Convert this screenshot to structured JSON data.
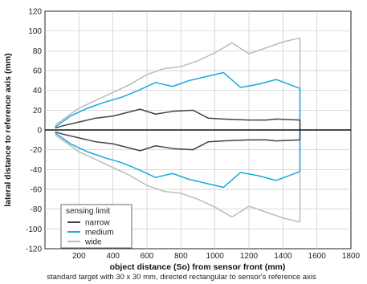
{
  "chart_data": {
    "type": "line",
    "xlabel": "object distance (So) from sensor front (mm)",
    "ylabel": "lateral distance to reference axis (mm)",
    "caption": "standard target with 30 x 30 mm, directed rectangular to sensor's reference axis",
    "xlim": [
      0,
      1800
    ],
    "ylim": [
      -120,
      120
    ],
    "x_ticks": [
      200,
      400,
      600,
      800,
      1000,
      1200,
      1400,
      1600,
      1800
    ],
    "y_ticks": [
      -120,
      -100,
      -80,
      -60,
      -40,
      -20,
      0,
      20,
      40,
      60,
      80,
      100,
      120
    ],
    "grid": true,
    "legend": {
      "title": "sensing limit",
      "placement": "bottom-left"
    },
    "series": [
      {
        "name": "narrow",
        "color": "#444444",
        "upper": [
          [
            60,
            2
          ],
          [
            100,
            4
          ],
          [
            200,
            8
          ],
          [
            300,
            12
          ],
          [
            400,
            14
          ],
          [
            560,
            21
          ],
          [
            650,
            16
          ],
          [
            760,
            19
          ],
          [
            870,
            20
          ],
          [
            960,
            12
          ],
          [
            1050,
            11
          ],
          [
            1200,
            10
          ],
          [
            1300,
            10
          ],
          [
            1360,
            11
          ],
          [
            1500,
            10
          ]
        ],
        "lower": [
          [
            60,
            -2
          ],
          [
            100,
            -4
          ],
          [
            200,
            -8
          ],
          [
            300,
            -12
          ],
          [
            400,
            -14
          ],
          [
            560,
            -21
          ],
          [
            650,
            -16
          ],
          [
            760,
            -19
          ],
          [
            870,
            -20
          ],
          [
            960,
            -12
          ],
          [
            1050,
            -11
          ],
          [
            1200,
            -10
          ],
          [
            1300,
            -10
          ],
          [
            1360,
            -11
          ],
          [
            1500,
            -10
          ]
        ],
        "closed_at_x": 1500
      },
      {
        "name": "medium",
        "color": "#19a8e0",
        "upper": [
          [
            60,
            3
          ],
          [
            150,
            14
          ],
          [
            250,
            22
          ],
          [
            350,
            28
          ],
          [
            450,
            33
          ],
          [
            550,
            40
          ],
          [
            650,
            48
          ],
          [
            750,
            44
          ],
          [
            850,
            50
          ],
          [
            950,
            54
          ],
          [
            1050,
            58
          ],
          [
            1150,
            43
          ],
          [
            1250,
            46
          ],
          [
            1360,
            51
          ],
          [
            1500,
            42
          ]
        ],
        "lower": [
          [
            60,
            -3
          ],
          [
            150,
            -14
          ],
          [
            250,
            -22
          ],
          [
            350,
            -28
          ],
          [
            450,
            -33
          ],
          [
            550,
            -40
          ],
          [
            650,
            -48
          ],
          [
            750,
            -44
          ],
          [
            850,
            -50
          ],
          [
            950,
            -54
          ],
          [
            1050,
            -58
          ],
          [
            1150,
            -43
          ],
          [
            1250,
            -46
          ],
          [
            1360,
            -51
          ],
          [
            1500,
            -42
          ]
        ],
        "closed_at_x": 1500
      },
      {
        "name": "wide",
        "color": "#bbbbbb",
        "upper": [
          [
            60,
            5
          ],
          [
            200,
            22
          ],
          [
            300,
            30
          ],
          [
            400,
            38
          ],
          [
            500,
            46
          ],
          [
            600,
            56
          ],
          [
            700,
            62
          ],
          [
            800,
            64
          ],
          [
            900,
            70
          ],
          [
            1000,
            78
          ],
          [
            1100,
            88
          ],
          [
            1200,
            77
          ],
          [
            1300,
            83
          ],
          [
            1400,
            89
          ],
          [
            1500,
            93
          ]
        ],
        "lower": [
          [
            60,
            -5
          ],
          [
            200,
            -22
          ],
          [
            300,
            -30
          ],
          [
            400,
            -38
          ],
          [
            500,
            -46
          ],
          [
            600,
            -56
          ],
          [
            700,
            -62
          ],
          [
            800,
            -64
          ],
          [
            900,
            -70
          ],
          [
            1000,
            -78
          ],
          [
            1100,
            -88
          ],
          [
            1200,
            -77
          ],
          [
            1300,
            -83
          ],
          [
            1400,
            -89
          ],
          [
            1500,
            -93
          ]
        ],
        "closed_at_x": 1500
      }
    ]
  }
}
